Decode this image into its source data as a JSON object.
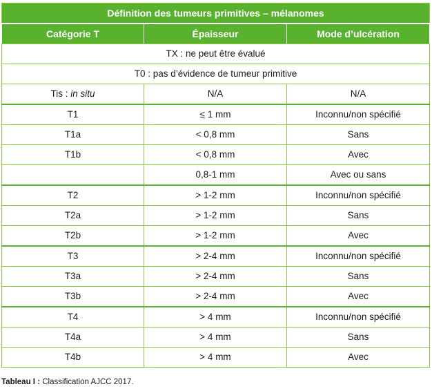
{
  "table": {
    "title": "Définition des tumeurs primitives – mélanomes",
    "headers": [
      "Catégorie T",
      "Épaisseur",
      "Mode d’ulcération"
    ],
    "span_rows": [
      "TX : ne peut être évalué",
      "T0 : pas d’évidence de tumeur primitive"
    ],
    "tis": {
      "prefix": "Tis : ",
      "italic": "in situ",
      "thickness": "N/A",
      "ulceration": "N/A"
    },
    "rows": [
      [
        "T1",
        "≤ 1 mm",
        "Inconnu/non spécifié"
      ],
      [
        "T1a",
        "< 0,8 mm",
        "Sans"
      ],
      [
        "T1b",
        "< 0,8 mm",
        "Avec"
      ],
      [
        "",
        "0,8-1 mm",
        "Avec ou sans"
      ],
      [
        "T2",
        "> 1-2 mm",
        "Inconnu/non spécifié"
      ],
      [
        "T2a",
        "> 1-2 mm",
        "Sans"
      ],
      [
        "T2b",
        "> 1-2 mm",
        "Avec"
      ],
      [
        "T3",
        "> 2-4 mm",
        "Inconnu/non spécifié"
      ],
      [
        "T3a",
        "> 2-4 mm",
        "Sans"
      ],
      [
        "T3b",
        "> 2-4 mm",
        "Avec"
      ],
      [
        "T4",
        "> 4 mm",
        "Inconnu/non spécifié"
      ],
      [
        "T4a",
        "> 4 mm",
        "Sans"
      ],
      [
        "T4b",
        "> 4 mm",
        "Avec"
      ]
    ]
  },
  "caption": {
    "label": "Tableau I :",
    "text": " Classification AJCC 2017."
  },
  "colors": {
    "header_green": "#58b22e",
    "border_green": "#8cc63f"
  }
}
